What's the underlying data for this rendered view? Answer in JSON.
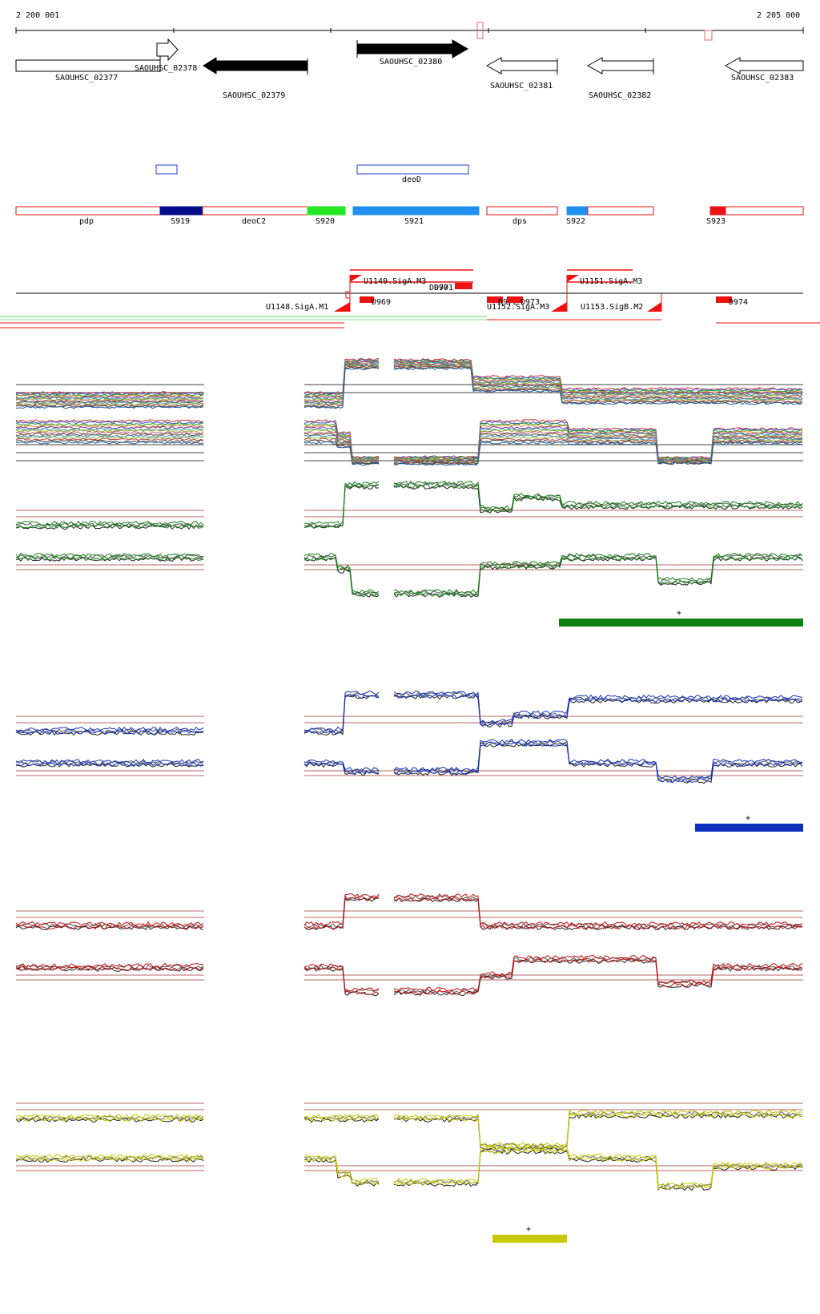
{
  "coords": {
    "start": "2 200 001",
    "end": "2 205 000"
  },
  "genes": [
    {
      "name": "SAOUHSC_02377",
      "strand": "+",
      "style": "outline"
    },
    {
      "name": "SAOUHSC_02378",
      "strand": "+",
      "style": "outline"
    },
    {
      "name": "SAOUHSC_02379",
      "strand": "-",
      "style": "filled"
    },
    {
      "name": "SAOUHSC_02380",
      "strand": "+",
      "style": "filled"
    },
    {
      "name": "SAOUHSC_02381",
      "strand": "-",
      "style": "outline"
    },
    {
      "name": "SAOUHSC_02382",
      "strand": "-",
      "style": "outline"
    },
    {
      "name": "SAOUHSC_02383",
      "strand": "-",
      "style": "outline"
    }
  ],
  "features": [
    {
      "name": "deoD",
      "color": "#1f3fd0"
    }
  ],
  "segments": [
    {
      "name": "pdp",
      "fill": ""
    },
    {
      "name": "S919",
      "fill": "#000e8a"
    },
    {
      "name": "deoC2",
      "fill": ""
    },
    {
      "name": "S920",
      "fill": "#22e822"
    },
    {
      "name": "S921",
      "fill": "#1e90f0"
    },
    {
      "name": "dps",
      "fill": ""
    },
    {
      "name": "S922",
      "fill": "#1e90f0"
    },
    {
      "name": "S923",
      "fill": "#ee1111"
    }
  ],
  "promoters": [
    {
      "name": "U1149.SigA.M3"
    },
    {
      "name": "U1151.SigA.M3"
    },
    {
      "name": "U1148.SigA.M1"
    },
    {
      "name": "U1152.SigA.M3"
    },
    {
      "name": "U1153.SigB.M2"
    }
  ],
  "d_labels": [
    "D969",
    "D970",
    "D971",
    "D972",
    "D973",
    "D974"
  ],
  "colors": {
    "panel1": "#108010",
    "panel2": "#1030c0",
    "panel3": "#c01010",
    "panel4": "#c8c800",
    "ref_line": "#a03030",
    "segment_outline": "#ee1111"
  },
  "panels": [
    {
      "id": "expr-green",
      "color": "#108010",
      "marker": "+"
    },
    {
      "id": "expr-blue",
      "color": "#1030c0",
      "marker": "+"
    },
    {
      "id": "expr-red",
      "color": "#c01010",
      "marker": ""
    },
    {
      "id": "expr-yellow",
      "color": "#c8c800",
      "marker": "+"
    }
  ]
}
